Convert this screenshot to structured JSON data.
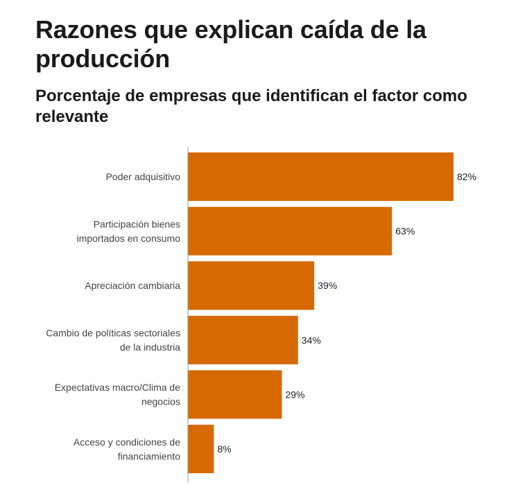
{
  "chart_data": {
    "type": "bar",
    "orientation": "horizontal",
    "title": "Razones que explican caída de la producción",
    "subtitle": "Porcentaje de empresas que identifican el factor como relevante",
    "categories": [
      [
        "Poder adquisitivo"
      ],
      [
        "Participación bienes",
        "importados en consumo"
      ],
      [
        "Apreciación cambiaria"
      ],
      [
        "Cambio de políticas sectoriales",
        "de la industria"
      ],
      [
        "Expectativas macro/Clima de",
        "negocios"
      ],
      [
        "Acceso y condiciones de",
        "financiamiento"
      ]
    ],
    "values": [
      82,
      63,
      39,
      34,
      29,
      8
    ],
    "value_labels": [
      "82%",
      "63%",
      "39%",
      "34%",
      "29%",
      "8%"
    ],
    "unit": "%",
    "xlim": [
      0,
      100
    ],
    "bar_color": "#d66a00",
    "axis_color": "#999999",
    "grid": false,
    "legend": "none"
  }
}
